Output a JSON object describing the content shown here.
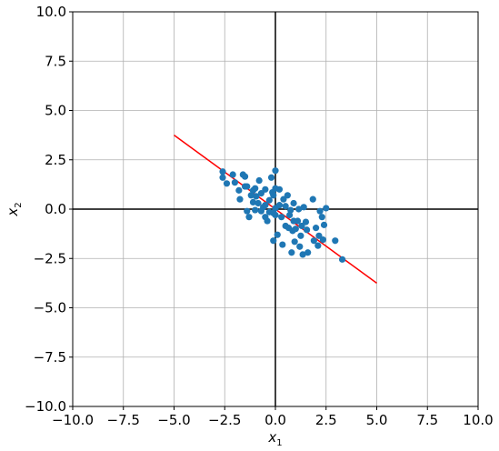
{
  "chart_data": {
    "type": "scatter",
    "xlabel": "x",
    "xlabel_sub": "1",
    "ylabel": "x",
    "ylabel_sub": "2",
    "xlim": [
      -10,
      10
    ],
    "ylim": [
      -10,
      10
    ],
    "grid": true,
    "xticks": [
      "−10.0",
      "−7.5",
      "−5.0",
      "−2.5",
      "0.0",
      "2.5",
      "5.0",
      "7.5",
      "10.0"
    ],
    "yticks": [
      "−10.0",
      "−7.5",
      "−5.0",
      "−2.5",
      "0.0",
      "2.5",
      "5.0",
      "7.5",
      "10.0"
    ],
    "xtick_values": [
      -10,
      -7.5,
      -5,
      -2.5,
      0,
      2.5,
      5,
      7.5,
      10
    ],
    "ytick_values": [
      -10,
      -7.5,
      -5,
      -2.5,
      0,
      2.5,
      5,
      7.5,
      10
    ],
    "colors": {
      "points": "#1f77b4",
      "fit_line": "#ff0000",
      "grid": "#b0b0b0",
      "axes": "#000000"
    },
    "fit_line": {
      "x": [
        -5.0,
        5.0
      ],
      "y": [
        3.75,
        -3.75
      ]
    },
    "points": [
      [
        -2.6,
        1.9
      ],
      [
        -2.6,
        1.6
      ],
      [
        -2.4,
        1.3
      ],
      [
        -2.1,
        1.75
      ],
      [
        -2.0,
        1.35
      ],
      [
        -1.8,
        0.95
      ],
      [
        -1.75,
        0.5
      ],
      [
        -1.6,
        1.75
      ],
      [
        -1.5,
        1.65
      ],
      [
        -1.5,
        1.15
      ],
      [
        -1.4,
        1.15
      ],
      [
        -1.4,
        -0.1
      ],
      [
        -1.3,
        -0.4
      ],
      [
        -1.2,
        0.7
      ],
      [
        -1.1,
        0.95
      ],
      [
        -1.1,
        0.35
      ],
      [
        -1.0,
        1.05
      ],
      [
        -1.0,
        -0.05
      ],
      [
        -0.95,
        0.65
      ],
      [
        -0.85,
        0.3
      ],
      [
        -0.8,
        1.45
      ],
      [
        -0.7,
        0.8
      ],
      [
        -0.7,
        -0.1
      ],
      [
        -0.6,
        0.1
      ],
      [
        -0.5,
        1.0
      ],
      [
        -0.5,
        0.2
      ],
      [
        -0.5,
        -0.4
      ],
      [
        -0.4,
        -0.6
      ],
      [
        -0.3,
        0.45
      ],
      [
        -0.3,
        -0.15
      ],
      [
        -0.2,
        1.6
      ],
      [
        -0.15,
        0.85
      ],
      [
        -0.1,
        0.7
      ],
      [
        -0.1,
        -0.2
      ],
      [
        -0.1,
        -1.6
      ],
      [
        0.0,
        1.95
      ],
      [
        0.0,
        1.05
      ],
      [
        0.0,
        0.05
      ],
      [
        0.0,
        -0.3
      ],
      [
        0.1,
        -1.3
      ],
      [
        0.2,
        1.0
      ],
      [
        0.2,
        0.2
      ],
      [
        0.3,
        -0.4
      ],
      [
        0.35,
        -1.8
      ],
      [
        0.4,
        0.5
      ],
      [
        0.5,
        0.15
      ],
      [
        0.5,
        -0.85
      ],
      [
        0.6,
        0.7
      ],
      [
        0.65,
        -0.95
      ],
      [
        0.7,
        -0.3
      ],
      [
        0.75,
        -0.05
      ],
      [
        0.8,
        -2.2
      ],
      [
        0.85,
        -1.1
      ],
      [
        0.9,
        0.3
      ],
      [
        0.9,
        -0.6
      ],
      [
        0.95,
        -1.65
      ],
      [
        1.0,
        -1.0
      ],
      [
        1.1,
        -0.6
      ],
      [
        1.15,
        0.0
      ],
      [
        1.2,
        -1.9
      ],
      [
        1.25,
        -1.35
      ],
      [
        1.3,
        -0.85
      ],
      [
        1.35,
        -2.3
      ],
      [
        1.4,
        0.1
      ],
      [
        1.5,
        -0.65
      ],
      [
        1.55,
        -1.05
      ],
      [
        1.6,
        -2.2
      ],
      [
        1.85,
        0.5
      ],
      [
        1.9,
        -1.6
      ],
      [
        2.0,
        -0.95
      ],
      [
        2.1,
        -1.85
      ],
      [
        2.15,
        -1.35
      ],
      [
        2.2,
        -0.1
      ],
      [
        2.3,
        -0.4
      ],
      [
        2.35,
        -1.55
      ],
      [
        2.4,
        -0.8
      ],
      [
        2.5,
        0.05
      ],
      [
        2.95,
        -1.6
      ],
      [
        3.3,
        -2.55
      ]
    ]
  }
}
